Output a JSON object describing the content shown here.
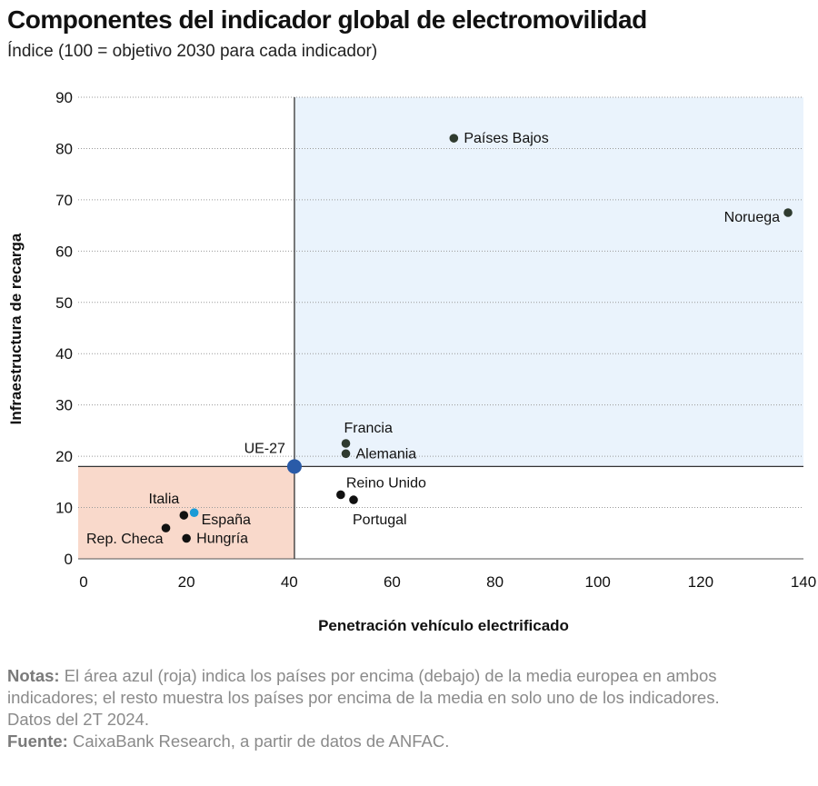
{
  "header": {
    "title": "Componentes del indicador global de electromovilidad",
    "subtitle": "Índice (100 = objetivo 2030 para cada indicador)"
  },
  "chart_data": {
    "type": "scatter",
    "title": "Componentes del indicador global de electromovilidad",
    "subtitle": "Índice (100 = objetivo 2030 para cada indicador)",
    "xlabel": "Penetración vehículo electrificado",
    "ylabel": "Infraestructura de recarga",
    "xlim": [
      0,
      140
    ],
    "ylim": [
      0,
      90
    ],
    "xticks": [
      0,
      20,
      40,
      60,
      80,
      100,
      120,
      140
    ],
    "yticks": [
      0,
      10,
      20,
      30,
      40,
      50,
      60,
      70,
      80,
      90
    ],
    "grid": "horizontal-dotted",
    "reference": {
      "name": "UE-27",
      "x": 41,
      "y": 18
    },
    "shaded_regions": [
      {
        "name": "above-average",
        "color": "#eaf3fc"
      },
      {
        "name": "below-average",
        "color": "#f9d9cb"
      }
    ],
    "points": [
      {
        "name": "Países Bajos",
        "x": 72,
        "y": 82,
        "color": "#2f3b2f",
        "label_side": "right"
      },
      {
        "name": "Noruega",
        "x": 137,
        "y": 67.5,
        "color": "#2f3b2f",
        "label_side": "left"
      },
      {
        "name": "Francia",
        "x": 51,
        "y": 22.5,
        "color": "#2f3b2f",
        "label_side": "above"
      },
      {
        "name": "Alemania",
        "x": 51,
        "y": 20.5,
        "color": "#2f3b2f",
        "label_side": "right"
      },
      {
        "name": "Reino Unido",
        "x": 50,
        "y": 12.5,
        "color": "#111111",
        "label_side": "above-right"
      },
      {
        "name": "Portugal",
        "x": 52.5,
        "y": 11.5,
        "color": "#111111",
        "label_side": "below"
      },
      {
        "name": "Italia",
        "x": 19.5,
        "y": 8.5,
        "color": "#111111",
        "label_side": "above-left"
      },
      {
        "name": "España",
        "x": 21.5,
        "y": 9,
        "color": "#1a9ad6",
        "label_side": "below-right"
      },
      {
        "name": "Rep. Checa",
        "x": 16,
        "y": 6,
        "color": "#111111",
        "label_side": "below-left"
      },
      {
        "name": "Hungría",
        "x": 20,
        "y": 4,
        "color": "#111111",
        "label_side": "right"
      }
    ],
    "colors": {
      "reference": "#2a5ba8",
      "grid": "#9a9a9a",
      "axis": "#555555"
    }
  },
  "notes": {
    "notes_label": "Notas:",
    "notes_text": " El área azul (roja) indica los países por encima (debajo) de la media europea en ambos indicadores; el resto muestra los países por encima de la media en solo uno de los indicadores. Datos del 2T 2024.",
    "source_label": "Fuente:",
    "source_text": " CaixaBank Research, a partir de datos de ANFAC."
  }
}
